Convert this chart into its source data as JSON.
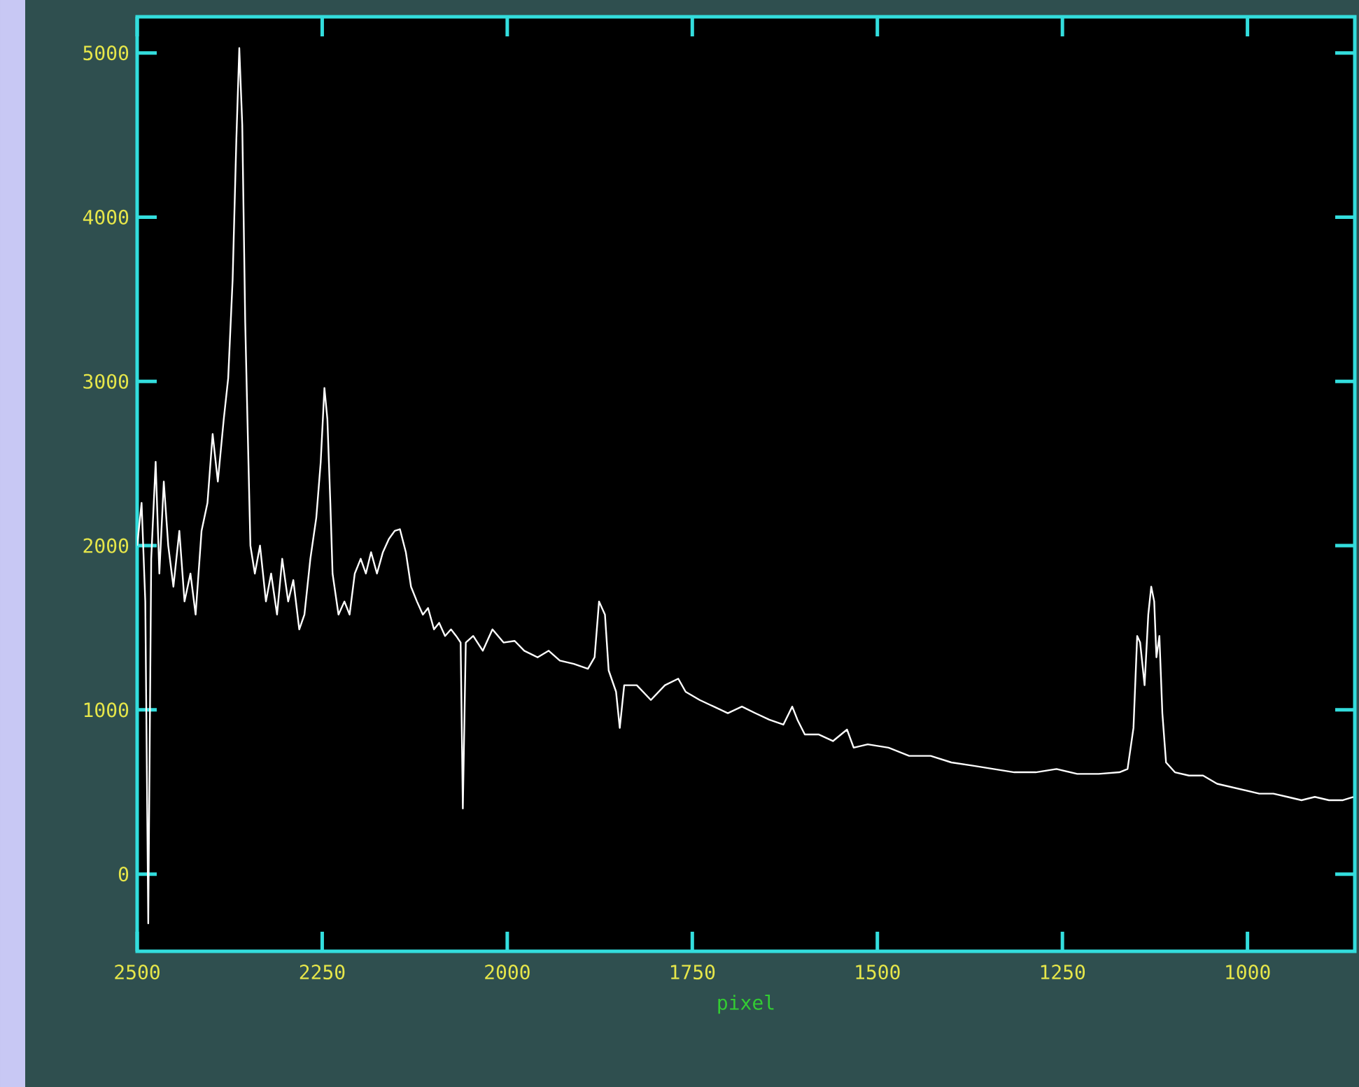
{
  "chart_data": {
    "type": "line",
    "xlabel": "pixel",
    "color": "#ffffff",
    "x": [
      2500,
      2494,
      2489,
      2485,
      2481,
      2475,
      2470,
      2464,
      2458,
      2451,
      2443,
      2436,
      2428,
      2421,
      2413,
      2405,
      2398,
      2391,
      2383,
      2377,
      2371,
      2366,
      2362,
      2358,
      2354,
      2351,
      2347,
      2341,
      2334,
      2326,
      2319,
      2311,
      2304,
      2296,
      2289,
      2281,
      2274,
      2266,
      2258,
      2252,
      2247,
      2243,
      2239,
      2236,
      2228,
      2220,
      2213,
      2206,
      2198,
      2191,
      2184,
      2176,
      2168,
      2160,
      2152,
      2145,
      2137,
      2130,
      2122,
      2114,
      2107,
      2099,
      2092,
      2084,
      2076,
      2069,
      2063,
      2060,
      2056,
      2046,
      2033,
      2020,
      2005,
      1990,
      1977,
      1959,
      1944,
      1929,
      1910,
      1891,
      1882,
      1876,
      1868,
      1863,
      1853,
      1848,
      1842,
      1825,
      1806,
      1787,
      1769,
      1759,
      1740,
      1721,
      1702,
      1683,
      1665,
      1646,
      1627,
      1615,
      1608,
      1598,
      1579,
      1560,
      1541,
      1532,
      1513,
      1485,
      1457,
      1428,
      1400,
      1371,
      1343,
      1315,
      1286,
      1258,
      1230,
      1201,
      1173,
      1162,
      1154,
      1149,
      1145,
      1139,
      1134,
      1130,
      1126,
      1123,
      1119,
      1115,
      1110,
      1098,
      1079,
      1060,
      1041,
      1022,
      1003,
      984,
      965,
      946,
      927,
      909,
      890,
      871,
      857
    ],
    "values": [
      2000,
      2260,
      1660,
      -300,
      1920,
      2510,
      1830,
      2390,
      2000,
      1750,
      2090,
      1660,
      1830,
      1580,
      2090,
      2260,
      2680,
      2390,
      2770,
      3020,
      3620,
      4470,
      5030,
      4560,
      3360,
      2770,
      2000,
      1830,
      2000,
      1660,
      1830,
      1580,
      1920,
      1660,
      1790,
      1490,
      1580,
      1920,
      2170,
      2510,
      2960,
      2770,
      2260,
      1830,
      1580,
      1660,
      1580,
      1830,
      1920,
      1830,
      1960,
      1830,
      1960,
      2040,
      2090,
      2100,
      1960,
      1750,
      1660,
      1580,
      1620,
      1490,
      1530,
      1450,
      1490,
      1450,
      1410,
      400,
      1410,
      1450,
      1360,
      1490,
      1410,
      1420,
      1360,
      1320,
      1360,
      1300,
      1280,
      1250,
      1320,
      1660,
      1580,
      1240,
      1110,
      890,
      1150,
      1150,
      1060,
      1150,
      1190,
      1110,
      1060,
      1020,
      980,
      1020,
      980,
      940,
      910,
      1020,
      940,
      850,
      850,
      810,
      880,
      770,
      790,
      770,
      720,
      720,
      680,
      660,
      640,
      620,
      620,
      640,
      610,
      610,
      620,
      640,
      890,
      1450,
      1410,
      1150,
      1580,
      1750,
      1660,
      1320,
      1450,
      980,
      680,
      620,
      600,
      600,
      550,
      530,
      510,
      490,
      490,
      470,
      450,
      470,
      450,
      450,
      470
    ],
    "xlim": [
      2500,
      855
    ],
    "ylim": [
      -470,
      5220
    ],
    "xticks": [
      2500,
      2250,
      2000,
      1750,
      1500,
      1250,
      1000
    ],
    "yticks": [
      0,
      1000,
      2000,
      3000,
      4000,
      5000
    ]
  }
}
